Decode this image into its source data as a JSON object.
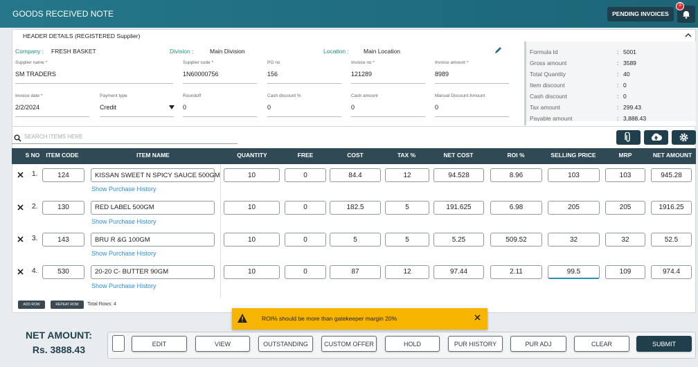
{
  "header": {
    "title": "GOODS RECEIVED NOTE",
    "pending_button": "PENDING INVOICES",
    "badge": "3"
  },
  "details": {
    "section_title": "HEADER DETAILS (REGISTERED Supplier)",
    "company": {
      "label": "Company :",
      "value": "FRESH BASKET"
    },
    "division": {
      "label": "Division :",
      "value": "Main Division"
    },
    "location": {
      "label": "Location :",
      "value": "Main Location"
    },
    "fields": [
      {
        "label": "Supplier name *",
        "value": "SM TRADERS"
      },
      {
        "label": "Supplier code *",
        "value": "1N60000756"
      },
      {
        "label": "PO no",
        "value": "156"
      },
      {
        "label": "Invoice no *",
        "value": "121289"
      },
      {
        "label": "Invoice amount *",
        "value": "8989"
      },
      {
        "label": "Invoice date *",
        "value": "2/2/2024"
      },
      {
        "label": "Payment type",
        "value": "Credit"
      },
      {
        "label": "Roundoff",
        "value": "0"
      },
      {
        "label": "Cash discount %",
        "value": "0"
      },
      {
        "label": "Cash amount",
        "value": "0"
      },
      {
        "label": "Manual Discount Amount",
        "value": "0"
      }
    ]
  },
  "summary": {
    "separator": ":",
    "rows": [
      [
        "Formula Id",
        "5001"
      ],
      [
        "Gross amount",
        "3589"
      ],
      [
        "Total Quantity",
        "40"
      ],
      [
        "Item discount",
        "0"
      ],
      [
        "Cash discount",
        "0"
      ],
      [
        "Tax amount",
        "299.43"
      ],
      [
        "Payable amount",
        "3,888.43"
      ]
    ]
  },
  "search_placeholder": "SEARCH ITEMS HERE",
  "table": {
    "columns": [
      "S NO",
      "ITEM CODE",
      "ITEM NAME",
      "QUANTITY",
      "FREE",
      "COST",
      "TAX %",
      "NET COST",
      "ROI %",
      "SELLING PRICE",
      "MRP",
      "NET AMOUNT"
    ],
    "history_link": "Show Purchase History",
    "rows": [
      [
        "1.",
        "124",
        "KISSAN SWEET N SPICY SAUCE 500GM",
        "10",
        "0",
        "84.4",
        "12",
        "94.528",
        "8.96",
        "103",
        "103",
        "945.28"
      ],
      [
        "2.",
        "130",
        "RED LABEL 500GM",
        "10",
        "0",
        "182.5",
        "5",
        "191.625",
        "6.98",
        "205",
        "205",
        "1916.25"
      ],
      [
        "3.",
        "143",
        "BRU R &G 100GM",
        "10",
        "0",
        "5",
        "5",
        "5.25",
        "509.52",
        "32",
        "32",
        "52.5"
      ],
      [
        "4.",
        "530",
        "20-20 C- BUTTER 90GM",
        "10",
        "0",
        "87",
        "12",
        "97.44",
        "2.11",
        "99.5",
        "109",
        "974.4"
      ]
    ]
  },
  "table_actions": {
    "add_row": "ADD ROW",
    "repeat_row": "REPEAT ROW",
    "total_rows": "Total Rows: 4"
  },
  "toast": "ROI% should be more than gatekeeper margin 20%",
  "net_amount": {
    "label": "NET AMOUNT:",
    "value": "Rs. 3888.43"
  },
  "footer_buttons": [
    "EDIT",
    "VIEW",
    "OUTSTANDING",
    "CUSTOM OFFER",
    "HOLD",
    "PUR HISTORY",
    "PUR ADJ",
    "CLEAR",
    "SUBMIT"
  ]
}
